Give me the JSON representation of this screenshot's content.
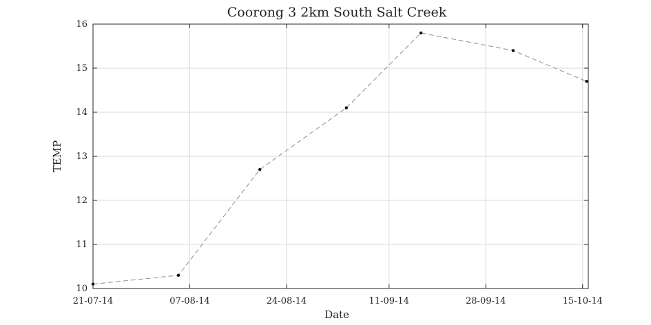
{
  "chart_data": {
    "type": "line",
    "title": "Coorong 3 2km South Salt Creek",
    "xlabel": "Date",
    "ylabel": "TEMP",
    "ylim": [
      10,
      16
    ],
    "yticks": [
      "10",
      "11",
      "12",
      "13",
      "14",
      "15",
      "16"
    ],
    "xlim_days": [
      0,
      87
    ],
    "xticks": [
      {
        "day": 0,
        "label": "21-07-14"
      },
      {
        "day": 17,
        "label": "07-08-14"
      },
      {
        "day": 34,
        "label": "24-08-14"
      },
      {
        "day": 52,
        "label": "11-09-14"
      },
      {
        "day": 69,
        "label": "28-09-14"
      },
      {
        "day": 86,
        "label": "15-10-14"
      }
    ],
    "grid": true,
    "series": [
      {
        "name": "TEMP",
        "x_days": [
          0,
          15,
          29.3,
          44.5,
          57.6,
          73.8,
          86.7
        ],
        "values": [
          10.1,
          10.3,
          12.7,
          14.1,
          15.8,
          15.4,
          14.7
        ]
      }
    ]
  }
}
